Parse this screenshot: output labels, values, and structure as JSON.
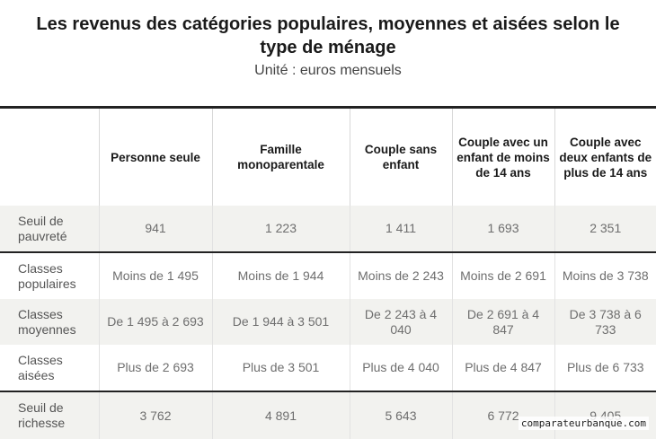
{
  "title": "Les revenus des catégories populaires, moyennes et aisées selon le type de ménage",
  "subtitle": "Unité : euros mensuels",
  "columns": [
    "",
    "Personne seule",
    "Famille monoparentale",
    "Couple sans enfant",
    "Couple avec un enfant de moins de 14 ans",
    "Couple avec deux enfants de plus de 14 ans"
  ],
  "rows": [
    {
      "label": "Seuil de pauvreté",
      "values": [
        "941",
        "1 223",
        "1 411",
        "1 693",
        "2 351"
      ]
    },
    {
      "label": "Classes populaires",
      "values": [
        "Moins de 1 495",
        "Moins de 1 944",
        "Moins de 2 243",
        "Moins de 2 691",
        "Moins de 3 738"
      ]
    },
    {
      "label": "Classes moyennes",
      "values": [
        "De 1 495 à 2 693",
        "De 1 944 à 3 501",
        "De 2 243 à 4 040",
        "De 2 691 à 4 847",
        "De 3 738 à 6 733"
      ]
    },
    {
      "label": "Classes aisées",
      "values": [
        "Plus de 2 693",
        "Plus de 3 501",
        "Plus de 4 040",
        "Plus de 4 847",
        "Plus de 6 733"
      ]
    },
    {
      "label": "Seuil de richesse",
      "values": [
        "3 762",
        "4 891",
        "5 643",
        "6 772",
        "9 405"
      ]
    }
  ],
  "watermark": "comparateurbanque.com"
}
